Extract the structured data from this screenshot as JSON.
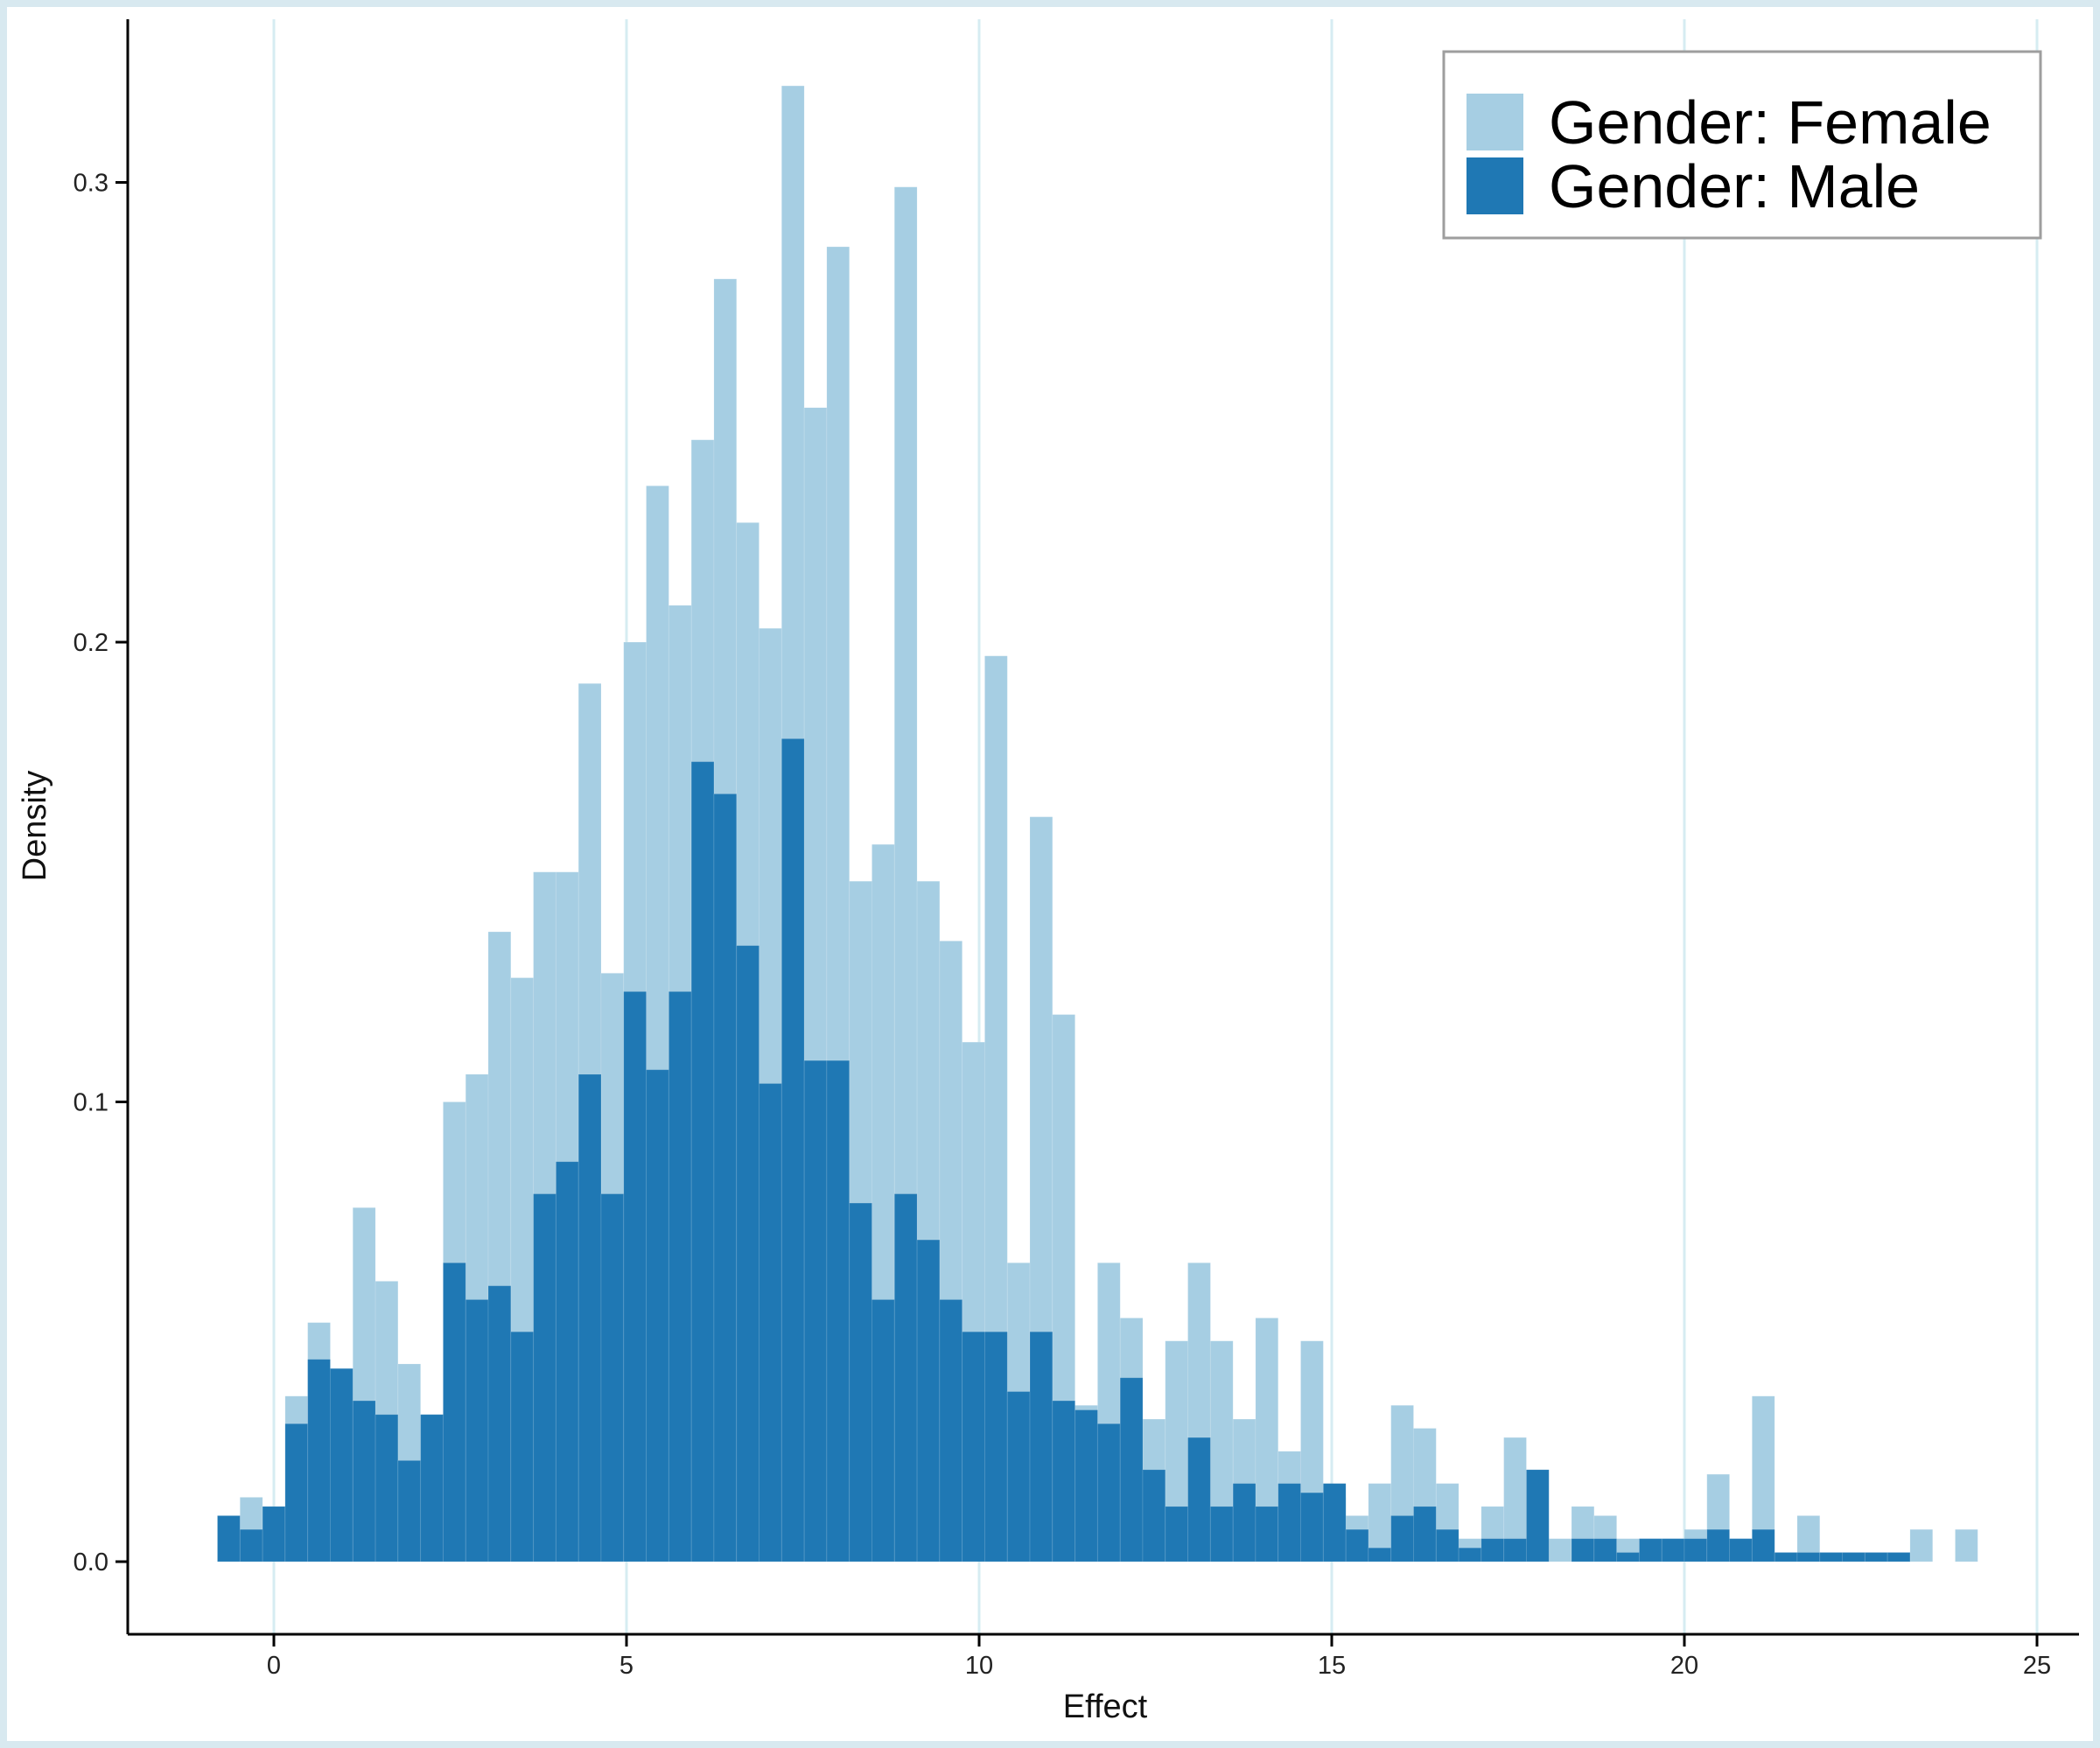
{
  "colors": {
    "outer_background": "#d8e9f0",
    "plot_background": "#ffffff",
    "gridline": "#d6ecf2",
    "female": "#a6cee3",
    "male": "#1f78b4",
    "axis": "#000000"
  },
  "chart_data": {
    "type": "histogram",
    "title": "",
    "xlabel": "Effect",
    "ylabel": "Density",
    "xlim": [
      -2,
      25.6
    ],
    "ylim": [
      -0.016,
      0.345
    ],
    "xticks": [
      0,
      5,
      10,
      15,
      20,
      25
    ],
    "yticks": [
      0.0,
      0.1,
      0.2,
      0.3
    ],
    "xtick_labels": [
      "0",
      "5",
      "10",
      "15",
      "20",
      "25"
    ],
    "ytick_labels": [
      "0.0",
      "0.1",
      "0.2",
      "0.3"
    ],
    "grid": "vertical lines at x ticks",
    "legend": {
      "placement": "top-right",
      "entries": [
        "Gender: Female",
        "Gender: Male"
      ]
    },
    "bin_start": -0.8,
    "bin_width": 0.32,
    "series": [
      {
        "name": "Gender: Female",
        "layer": "back",
        "values": [
          0.01,
          0.014,
          0.012,
          0.036,
          0.052,
          0.042,
          0.077,
          0.061,
          0.043,
          0.032,
          0.1,
          0.106,
          0.137,
          0.127,
          0.15,
          0.15,
          0.191,
          0.128,
          0.2,
          0.234,
          0.208,
          0.244,
          0.279,
          0.226,
          0.203,
          0.321,
          0.251,
          0.286,
          0.148,
          0.156,
          0.299,
          0.148,
          0.135,
          0.113,
          0.197,
          0.065,
          0.162,
          0.119,
          0.034,
          0.065,
          0.053,
          0.031,
          0.048,
          0.065,
          0.048,
          0.031,
          0.053,
          0.024,
          0.048,
          0.014,
          0.01,
          0.017,
          0.034,
          0.029,
          0.017,
          0.005,
          0.012,
          0.027,
          0.0,
          0.005,
          0.012,
          0.01,
          0.005,
          0.005,
          0.005,
          0.007,
          0.019,
          0.005,
          0.036,
          0.002,
          0.01,
          0.002,
          0.002,
          0.002,
          0.002,
          0.007,
          0.0,
          0.007
        ]
      },
      {
        "name": "Gender: Male",
        "layer": "front",
        "values": [
          0.01,
          0.007,
          0.012,
          0.03,
          0.044,
          0.042,
          0.035,
          0.032,
          0.022,
          0.032,
          0.065,
          0.057,
          0.06,
          0.05,
          0.08,
          0.087,
          0.106,
          0.08,
          0.124,
          0.107,
          0.124,
          0.174,
          0.167,
          0.134,
          0.104,
          0.179,
          0.109,
          0.109,
          0.078,
          0.057,
          0.08,
          0.07,
          0.057,
          0.05,
          0.05,
          0.037,
          0.05,
          0.035,
          0.033,
          0.03,
          0.04,
          0.02,
          0.012,
          0.027,
          0.012,
          0.017,
          0.012,
          0.017,
          0.015,
          0.017,
          0.007,
          0.003,
          0.01,
          0.012,
          0.007,
          0.003,
          0.005,
          0.005,
          0.02,
          0.0,
          0.005,
          0.005,
          0.002,
          0.005,
          0.005,
          0.005,
          0.007,
          0.005,
          0.007,
          0.002,
          0.002,
          0.002,
          0.002,
          0.002,
          0.002,
          0.0,
          0.0,
          0.0
        ]
      }
    ]
  }
}
